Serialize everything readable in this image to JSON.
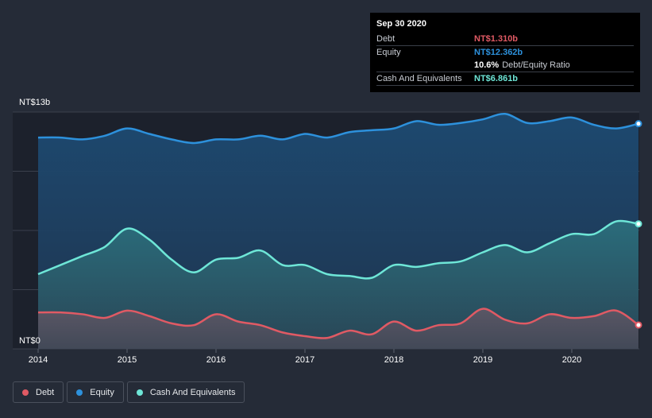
{
  "tooltip": {
    "date": "Sep 30 2020",
    "debt_label": "Debt",
    "debt_value": "NT$1.310b",
    "equity_label": "Equity",
    "equity_value": "NT$12.362b",
    "ratio_value": "10.6%",
    "ratio_label": "Debt/Equity Ratio",
    "cash_label": "Cash And Equivalents",
    "cash_value": "NT$6.861b"
  },
  "legend": {
    "debt": "Debt",
    "equity": "Equity",
    "cash": "Cash And Equivalents"
  },
  "colors": {
    "debt": "#e05a64",
    "equity": "#2d91dc",
    "cash": "#6ee6d7",
    "background": "#252b37"
  },
  "chart_data": {
    "type": "area",
    "y_top_label": "NT$13b",
    "y_bottom_label": "NT$0",
    "ylim": [
      0,
      13
    ],
    "xlim": [
      2014,
      2020.75
    ],
    "x_ticks": [
      "2014",
      "2015",
      "2016",
      "2017",
      "2018",
      "2019",
      "2020"
    ],
    "grid": true,
    "series": [
      {
        "name": "Equity",
        "x": [
          2014,
          2014.25,
          2014.5,
          2014.75,
          2015,
          2015.25,
          2015.5,
          2015.75,
          2016,
          2016.25,
          2016.5,
          2016.75,
          2017,
          2017.25,
          2017.5,
          2017.75,
          2018,
          2018.25,
          2018.5,
          2018.75,
          2019,
          2019.25,
          2019.5,
          2019.75,
          2020,
          2020.25,
          2020.5,
          2020.75
        ],
        "values": [
          11.6,
          11.6,
          11.5,
          11.7,
          12.1,
          11.8,
          11.5,
          11.3,
          11.5,
          11.5,
          11.7,
          11.5,
          11.8,
          11.6,
          11.9,
          12.0,
          12.1,
          12.5,
          12.3,
          12.4,
          12.6,
          12.9,
          12.4,
          12.5,
          12.7,
          12.3,
          12.1,
          12.36
        ]
      },
      {
        "name": "Cash And Equivalents",
        "x": [
          2014,
          2014.25,
          2014.5,
          2014.75,
          2015,
          2015.25,
          2015.5,
          2015.75,
          2016,
          2016.25,
          2016.5,
          2016.75,
          2017,
          2017.25,
          2017.5,
          2017.75,
          2018,
          2018.25,
          2018.5,
          2018.75,
          2019,
          2019.25,
          2019.5,
          2019.75,
          2020,
          2020.25,
          2020.5,
          2020.75
        ],
        "values": [
          4.1,
          4.6,
          5.1,
          5.6,
          6.6,
          6.0,
          4.9,
          4.2,
          4.9,
          5.0,
          5.4,
          4.6,
          4.6,
          4.1,
          4.0,
          3.9,
          4.6,
          4.5,
          4.7,
          4.8,
          5.3,
          5.7,
          5.3,
          5.8,
          6.3,
          6.3,
          7.0,
          6.861
        ]
      },
      {
        "name": "Debt",
        "x": [
          2014,
          2014.25,
          2014.5,
          2014.75,
          2015,
          2015.25,
          2015.5,
          2015.75,
          2016,
          2016.25,
          2016.5,
          2016.75,
          2017,
          2017.25,
          2017.5,
          2017.75,
          2018,
          2018.25,
          2018.5,
          2018.75,
          2019,
          2019.25,
          2019.5,
          2019.75,
          2020,
          2020.25,
          2020.5,
          2020.75
        ],
        "values": [
          2.0,
          2.0,
          1.9,
          1.7,
          2.1,
          1.8,
          1.4,
          1.3,
          1.9,
          1.5,
          1.3,
          0.9,
          0.7,
          0.6,
          1.0,
          0.8,
          1.5,
          1.0,
          1.3,
          1.4,
          2.2,
          1.6,
          1.4,
          1.9,
          1.7,
          1.8,
          2.1,
          1.31
        ]
      }
    ]
  }
}
